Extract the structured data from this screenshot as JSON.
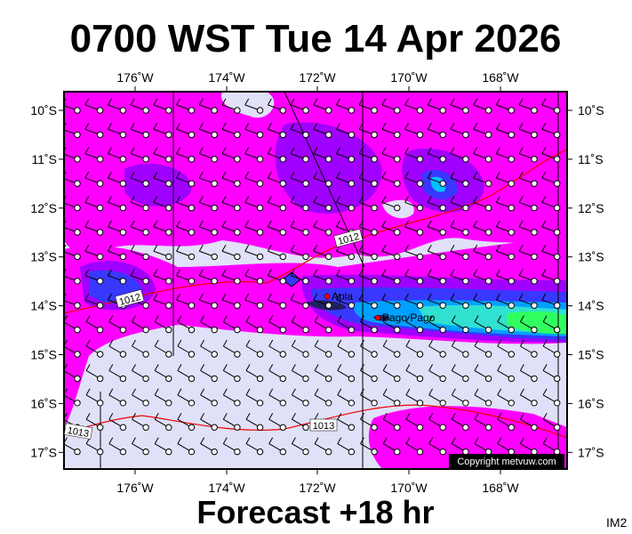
{
  "header": {
    "title": "0700 WST Tue 14 Apr 2026"
  },
  "map": {
    "lon_labels": [
      "176˚W",
      "174˚W",
      "172˚W",
      "170˚W",
      "168˚W"
    ],
    "lat_labels": [
      "10˚S",
      "11˚S",
      "12˚S",
      "13˚S",
      "14˚S",
      "15˚S",
      "16˚S",
      "17˚S"
    ],
    "places": [
      "Apia",
      "Pago Pago"
    ],
    "isobar_labels": [
      "1012",
      "1012",
      "1013",
      "1013"
    ],
    "copyright": "Copyright metvuw.com"
  },
  "footer": {
    "text": "Forecast +18 hr",
    "code": "IM2"
  }
}
